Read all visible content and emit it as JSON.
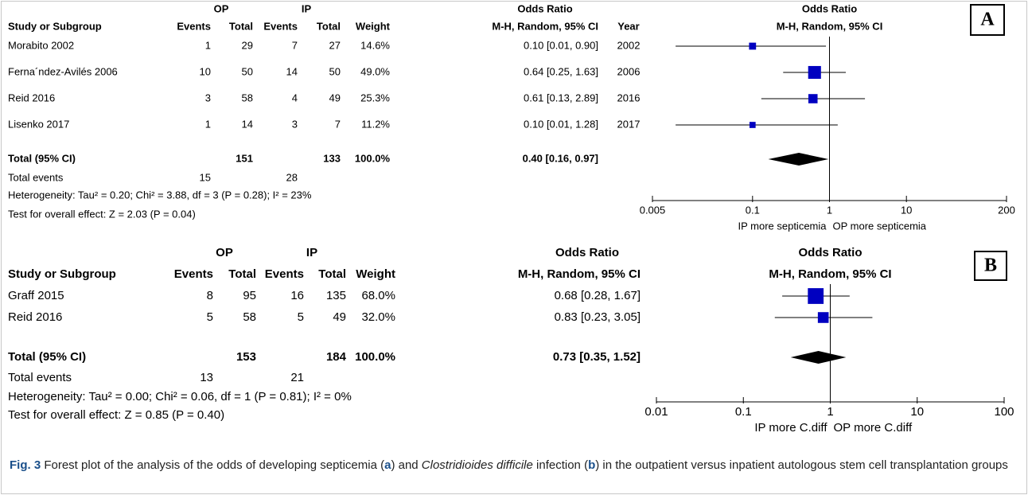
{
  "chart_data": [
    {
      "type": "forest",
      "panel": "A",
      "headers": {
        "group1": "OP",
        "group2": "IP",
        "effect": "Odds Ratio",
        "study": "Study or Subgroup",
        "events1": "Events",
        "total1": "Total",
        "events2": "Events",
        "total2": "Total",
        "weight": "Weight",
        "method": "M-H, Random, 95% CI",
        "year": "Year",
        "plot_effect": "Odds Ratio",
        "plot_method": "M-H, Random, 95% CI"
      },
      "studies": [
        {
          "name": "Morabito 2002",
          "op_events": 1,
          "op_total": 29,
          "ip_events": 7,
          "ip_total": 27,
          "weight": 14.6,
          "weight_label": "14.6%",
          "or": 0.1,
          "ci": [
            0.01,
            0.9
          ],
          "or_label": "0.10 [0.01, 0.90]",
          "year": 2002
        },
        {
          "name": "Ferna´ndez-Avilés 2006",
          "op_events": 10,
          "op_total": 50,
          "ip_events": 14,
          "ip_total": 50,
          "weight": 49.0,
          "weight_label": "49.0%",
          "or": 0.64,
          "ci": [
            0.25,
            1.63
          ],
          "or_label": "0.64 [0.25, 1.63]",
          "year": 2006
        },
        {
          "name": "Reid 2016",
          "op_events": 3,
          "op_total": 58,
          "ip_events": 4,
          "ip_total": 49,
          "weight": 25.3,
          "weight_label": "25.3%",
          "or": 0.61,
          "ci": [
            0.13,
            2.89
          ],
          "or_label": "0.61 [0.13, 2.89]",
          "year": 2016
        },
        {
          "name": "Lisenko 2017",
          "op_events": 1,
          "op_total": 14,
          "ip_events": 3,
          "ip_total": 7,
          "weight": 11.2,
          "weight_label": "11.2%",
          "or": 0.1,
          "ci": [
            0.01,
            1.28
          ],
          "or_label": "0.10 [0.01, 1.28]",
          "year": 2017
        }
      ],
      "total": {
        "name": "Total (95% CI)",
        "op_total": 151,
        "ip_total": 133,
        "weight": 100.0,
        "weight_label": "100.0%",
        "or": 0.4,
        "ci": [
          0.16,
          0.97
        ],
        "or_label": "0.40 [0.16, 0.97]"
      },
      "events": {
        "name": "Total events",
        "op": 15,
        "ip": 28
      },
      "heterogeneity": "Heterogeneity: Tau² = 0.20; Chi² = 3.88, df = 3 (P = 0.28); I² = 23%",
      "overall": "Test for overall effect: Z = 2.03 (P = 0.04)",
      "log_x": true,
      "xlim": [
        0.005,
        200
      ],
      "xticks": [
        0.005,
        0.1,
        1,
        10,
        200
      ],
      "xlabel_left": "IP more septicemia",
      "xlabel_right": "OP more septicemia",
      "color": "#0000c0"
    },
    {
      "type": "forest",
      "panel": "B",
      "headers": {
        "group1": "OP",
        "group2": "IP",
        "effect": "Odds Ratio",
        "study": "Study or Subgroup",
        "events1": "Events",
        "total1": "Total",
        "events2": "Events",
        "total2": "Total",
        "weight": "Weight",
        "method": "M-H, Random, 95% CI",
        "plot_effect": "Odds Ratio",
        "plot_method": "M-H, Random, 95% CI"
      },
      "studies": [
        {
          "name": "Graff 2015",
          "op_events": 8,
          "op_total": 95,
          "ip_events": 16,
          "ip_total": 135,
          "weight": 68.0,
          "weight_label": "68.0%",
          "or": 0.68,
          "ci": [
            0.28,
            1.67
          ],
          "or_label": "0.68 [0.28, 1.67]"
        },
        {
          "name": "Reid 2016",
          "op_events": 5,
          "op_total": 58,
          "ip_events": 5,
          "ip_total": 49,
          "weight": 32.0,
          "weight_label": "32.0%",
          "or": 0.83,
          "ci": [
            0.23,
            3.05
          ],
          "or_label": "0.83 [0.23, 3.05]"
        }
      ],
      "total": {
        "name": "Total (95% CI)",
        "op_total": 153,
        "ip_total": 184,
        "weight": 100.0,
        "weight_label": "100.0%",
        "or": 0.73,
        "ci": [
          0.35,
          1.52
        ],
        "or_label": "0.73 [0.35, 1.52]"
      },
      "events": {
        "name": "Total events",
        "op": 13,
        "ip": 21
      },
      "heterogeneity": "Heterogeneity: Tau² = 0.00; Chi² = 0.06, df = 1 (P = 0.81); I² = 0%",
      "overall": "Test for overall effect: Z = 0.85 (P = 0.40)",
      "log_x": true,
      "xlim": [
        0.01,
        100
      ],
      "xticks": [
        0.01,
        0.1,
        1,
        10,
        100
      ],
      "xlabel_left": "IP more C.diff",
      "xlabel_right": "OP more C.diff",
      "color": "#0000c0"
    }
  ],
  "caption": {
    "label": "Fig. 3",
    "text1": " Forest plot of the analysis of the odds of developing septicemia (",
    "a": "a",
    "text2": ") and ",
    "species": "Clostridioides difficile",
    "text3": " infection (",
    "b": "b",
    "text4": ") in the outpatient versus inpatient autologous stem cell transplantation groups"
  }
}
